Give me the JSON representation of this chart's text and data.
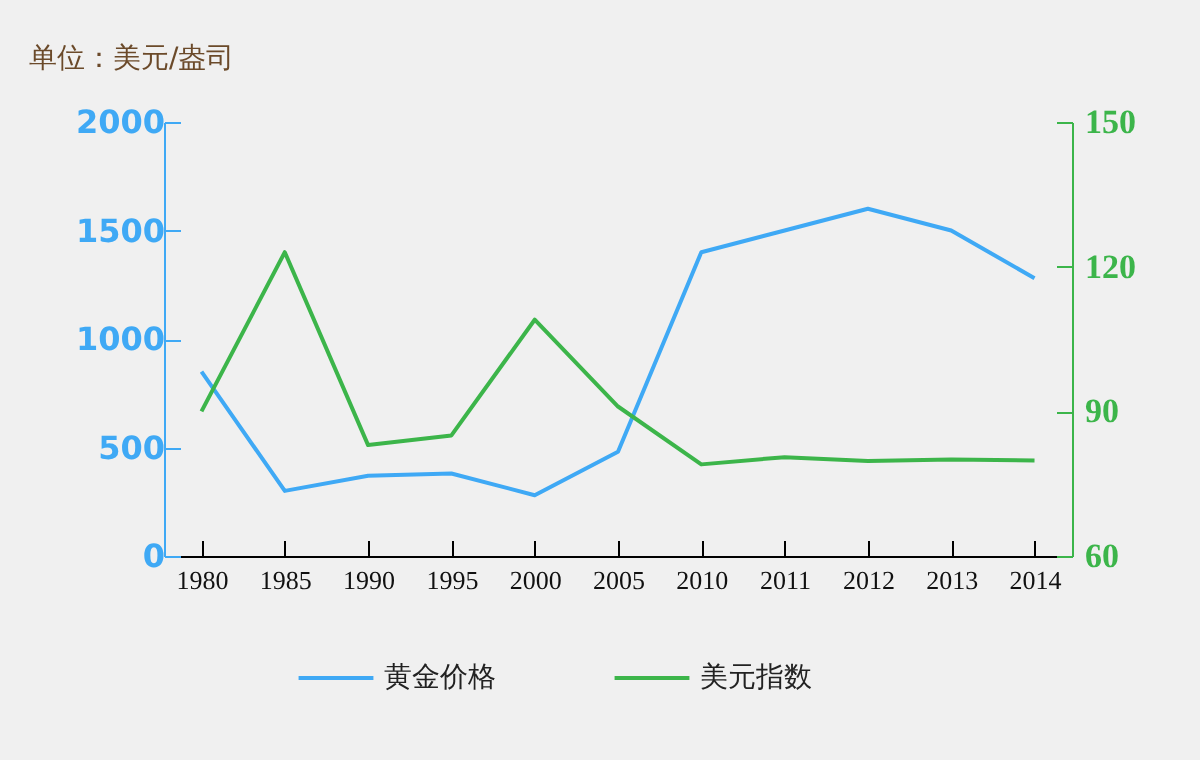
{
  "chart_data": {
    "type": "line",
    "ylabel": "单位：美元/盎司",
    "categories": [
      "1980",
      "1985",
      "1990",
      "1995",
      "2000",
      "2005",
      "2010",
      "2011",
      "2012",
      "2013",
      "2014"
    ],
    "series": [
      {
        "name": "黄金价格",
        "color": "#3fa9f5",
        "values": [
          850,
          300,
          370,
          380,
          280,
          480,
          1400,
          1500,
          1600,
          1500,
          1280
        ]
      },
      {
        "name": "美元指数",
        "color": "#3cb54a",
        "axis": "y2",
        "values": [
          90,
          123,
          83,
          85,
          109,
          91,
          79,
          80.5,
          79.7,
          80,
          79.8
        ]
      }
    ],
    "ylim": [
      0,
      2000
    ],
    "yticks": [
      0,
      500,
      1000,
      1500,
      2000
    ],
    "y2lim": [
      60,
      150
    ],
    "y2ticks": [
      60,
      90,
      120,
      150
    ],
    "legend": "bottom"
  }
}
